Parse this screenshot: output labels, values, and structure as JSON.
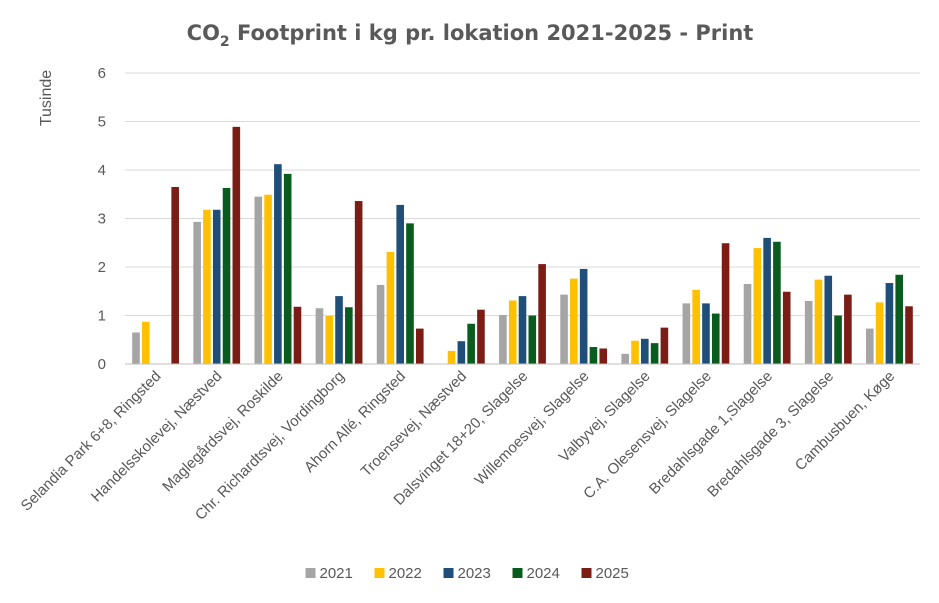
{
  "chart_data": {
    "type": "bar",
    "title_main": "CO",
    "title_sub": "2",
    "title_rest": " Footprint i kg pr. lokation 2021-2025 - Print",
    "ylabel": "Tusinde",
    "xlabel": "",
    "ylim": [
      0,
      6
    ],
    "yticks": [
      "0",
      "1",
      "2",
      "3",
      "4",
      "5",
      "6"
    ],
    "grid": true,
    "legend_position": "bottom",
    "categories": [
      "Selandia Park 6+8, Ringsted",
      "Handelsskolevej, Næstved",
      "Maglegårdsvej, Roskilde",
      "Chr. Richardtsvej, Vordingborg",
      "Ahorn Allé, Ringsted",
      "Troensevej, Næstved",
      "Dalsvinget 18+20, Slagelse",
      "Willemoesvej, Slagelse",
      "Valbyvej, Slagelse",
      "C.A. Olesensvej, Slagelse",
      "Bredahlsgade 1,Slagelse",
      "Bredahlsgade 3, Slagelse",
      "Cambusbuen, Køge"
    ],
    "series": [
      {
        "name": "2021",
        "color": "#a5a5a5",
        "values": [
          0.65,
          2.93,
          3.45,
          1.15,
          1.63,
          null,
          1.01,
          1.43,
          0.21,
          1.25,
          1.65,
          1.3,
          0.73
        ]
      },
      {
        "name": "2022",
        "color": "#ffc000",
        "values": [
          0.87,
          3.18,
          3.49,
          0.99,
          2.31,
          0.27,
          1.31,
          1.76,
          0.48,
          1.53,
          2.39,
          1.74,
          1.27
        ]
      },
      {
        "name": "2023",
        "color": "#1f4e79",
        "values": [
          null,
          3.18,
          4.12,
          1.4,
          3.28,
          0.47,
          1.4,
          1.96,
          0.52,
          1.25,
          2.6,
          1.82,
          1.67
        ]
      },
      {
        "name": "2024",
        "color": "#0a5c1e",
        "values": [
          null,
          3.63,
          3.92,
          1.17,
          2.9,
          0.83,
          1.0,
          0.35,
          0.43,
          1.04,
          2.52,
          1.0,
          1.84
        ]
      },
      {
        "name": "2025",
        "color": "#7b1c15",
        "values": [
          3.65,
          4.89,
          1.18,
          3.36,
          0.73,
          1.12,
          2.06,
          0.32,
          0.75,
          2.49,
          1.49,
          1.43,
          1.19
        ]
      }
    ]
  }
}
